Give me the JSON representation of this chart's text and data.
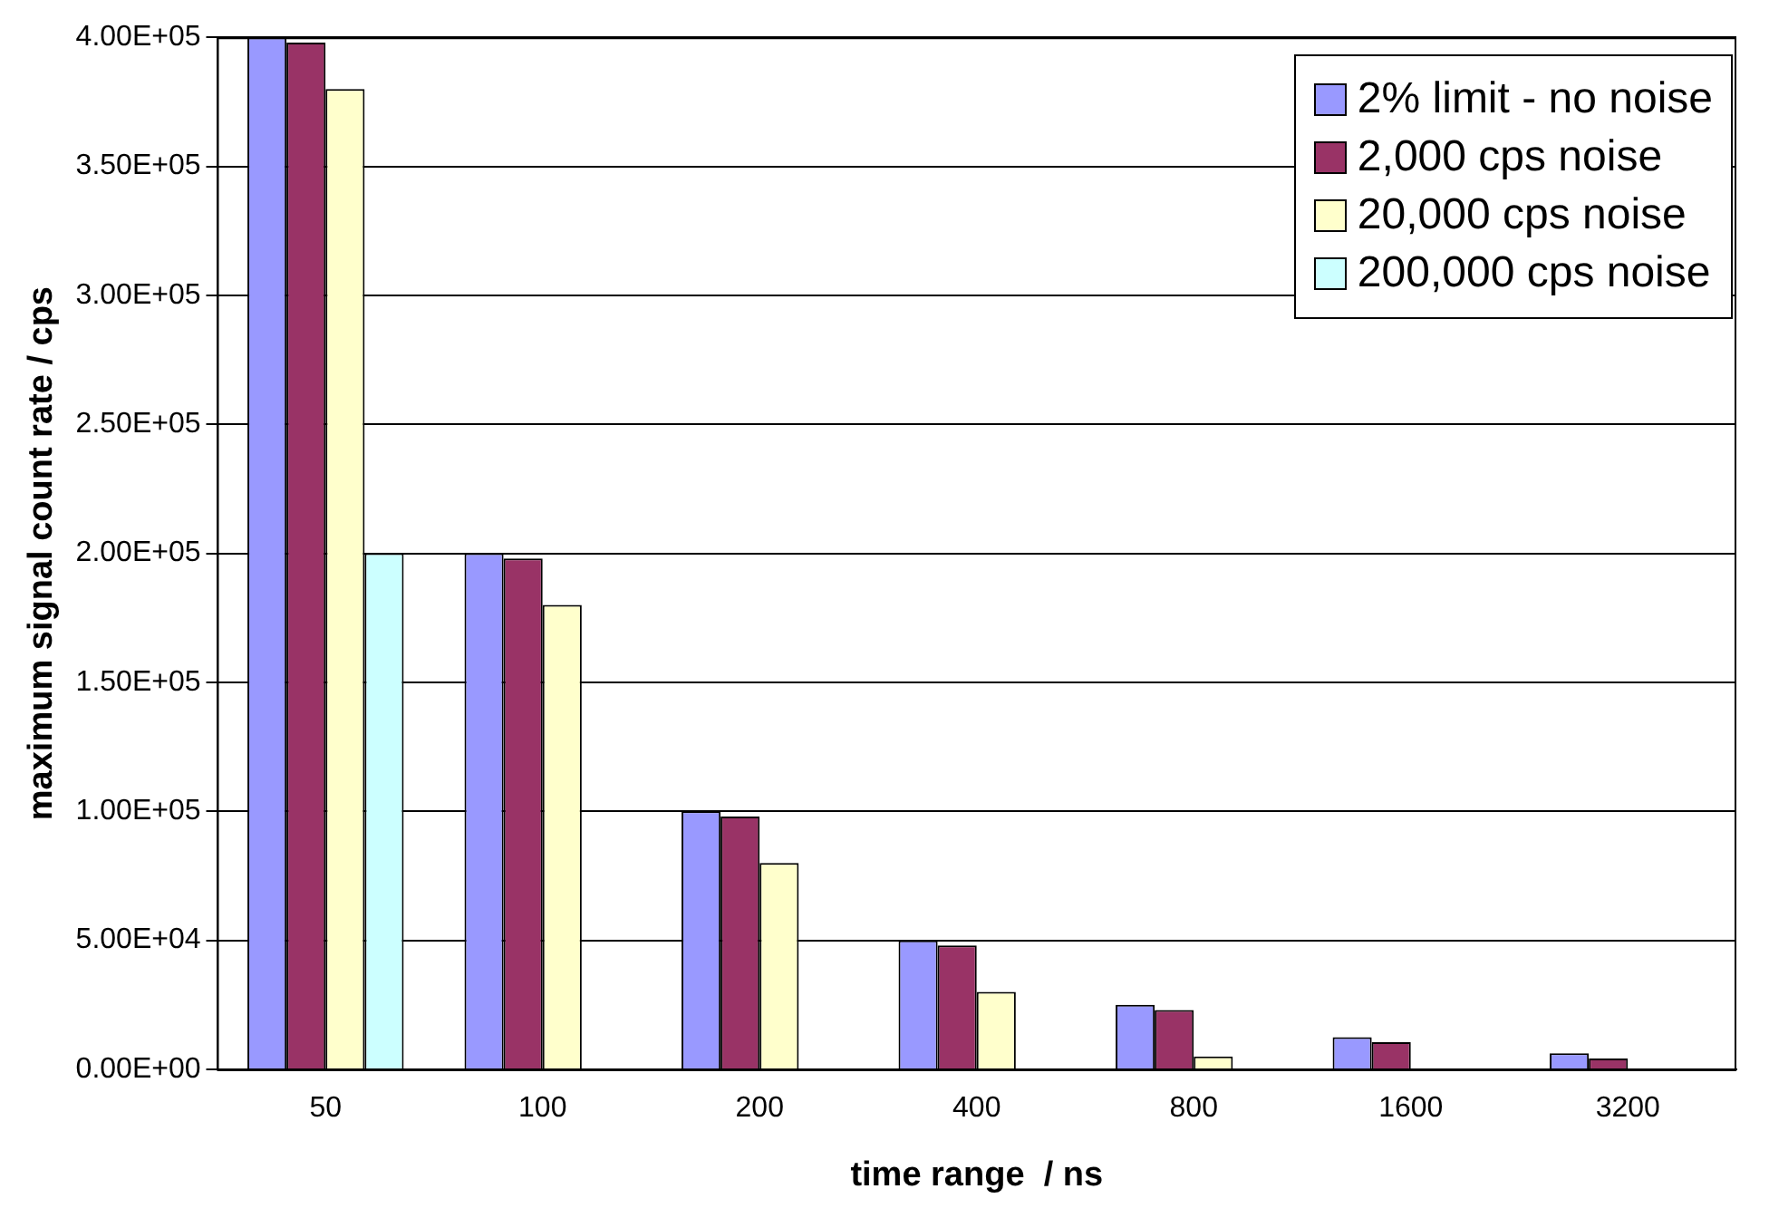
{
  "chart_data": {
    "type": "bar",
    "xlabel": "time range  / ns",
    "ylabel": "maximum signal count rate / cps",
    "categories": [
      "50",
      "100",
      "200",
      "400",
      "800",
      "1600",
      "3200"
    ],
    "series": [
      {
        "name": "2% limit - no noise",
        "color": "#9999ff",
        "values": [
          400000,
          200000,
          100000,
          50000,
          25000,
          12500,
          6250
        ]
      },
      {
        "name": "2,000 cps noise",
        "color": "#993366",
        "values": [
          398000,
          198000,
          98000,
          48000,
          23000,
          10500,
          4250
        ]
      },
      {
        "name": "20,000 cps noise",
        "color": "#ffffcc",
        "values": [
          380000,
          180000,
          80000,
          30000,
          5000,
          null,
          null
        ]
      },
      {
        "name": "200,000 cps noise",
        "color": "#ccffff",
        "values": [
          200000,
          null,
          null,
          null,
          null,
          null,
          null
        ]
      }
    ],
    "ylim": [
      0,
      400000
    ],
    "yticks": [
      {
        "value": 0,
        "label": "0.00E+00"
      },
      {
        "value": 50000,
        "label": "5.00E+04"
      },
      {
        "value": 100000,
        "label": "1.00E+05"
      },
      {
        "value": 150000,
        "label": "1.50E+05"
      },
      {
        "value": 200000,
        "label": "2.00E+05"
      },
      {
        "value": 250000,
        "label": "2.50E+05"
      },
      {
        "value": 300000,
        "label": "3.00E+05"
      },
      {
        "value": 350000,
        "label": "3.50E+05"
      },
      {
        "value": 400000,
        "label": "4.00E+05"
      }
    ],
    "grid": "y",
    "legend": "top right"
  }
}
